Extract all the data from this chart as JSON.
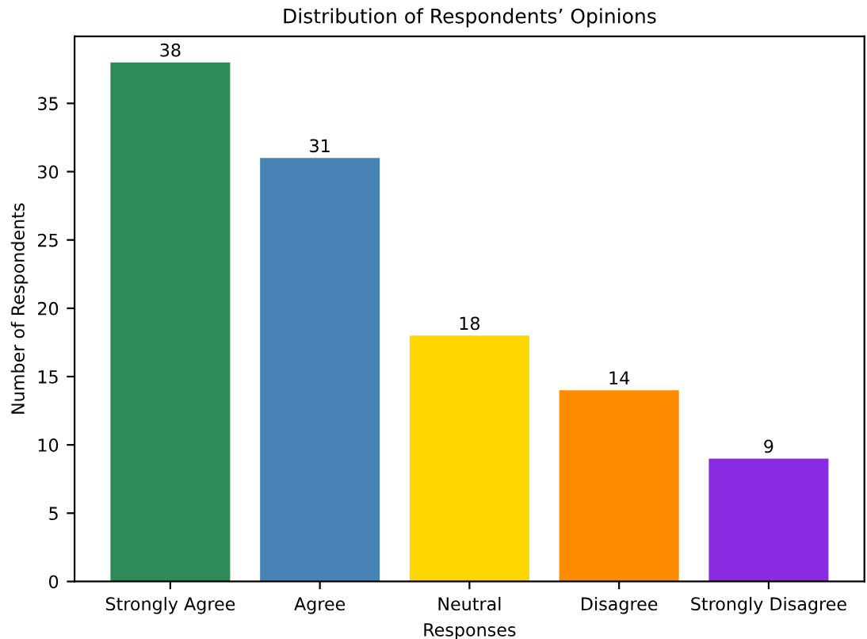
{
  "chart_data": {
    "type": "bar",
    "title": "Distribution of Respondents’ Opinions",
    "xlabel": "Responses",
    "ylabel": "Number of Respondents",
    "categories": [
      "Strongly Agree",
      "Agree",
      "Neutral",
      "Disagree",
      "Strongly Disagree"
    ],
    "values": [
      38,
      31,
      18,
      14,
      9
    ],
    "colors": [
      "#2e8b57",
      "#4682b4",
      "#ffd700",
      "#ff8c00",
      "#8a2be2"
    ],
    "ylim": [
      0,
      39.9
    ],
    "yticks": [
      0,
      5,
      10,
      15,
      20,
      25,
      30,
      35
    ],
    "data_labels": true,
    "grid": false
  }
}
